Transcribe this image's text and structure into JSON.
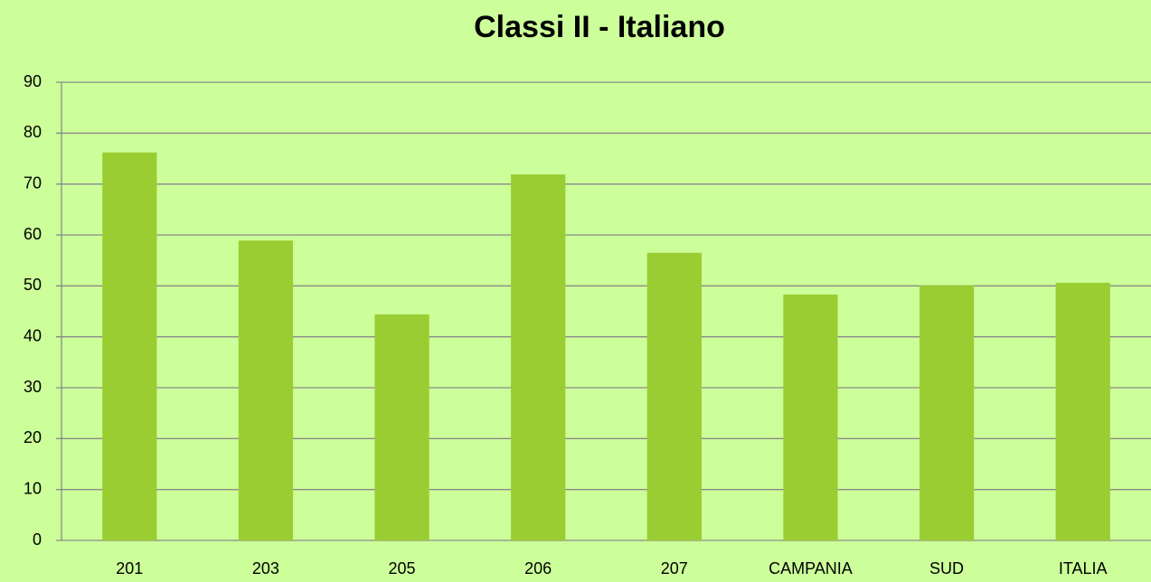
{
  "chart_data": {
    "type": "bar",
    "title": "Classi II - Italiano",
    "categories": [
      "201",
      "203",
      "205",
      "206",
      "207",
      "CAMPANIA",
      "SUD",
      "ITALIA"
    ],
    "values": [
      76.2,
      58.9,
      44.4,
      71.9,
      56.5,
      48.3,
      50.1,
      50.6
    ],
    "color": "#9acd32",
    "ylim": [
      0,
      90
    ],
    "yticks": [
      0,
      10,
      20,
      30,
      40,
      50,
      60,
      70,
      80,
      90
    ],
    "grid": true
  }
}
